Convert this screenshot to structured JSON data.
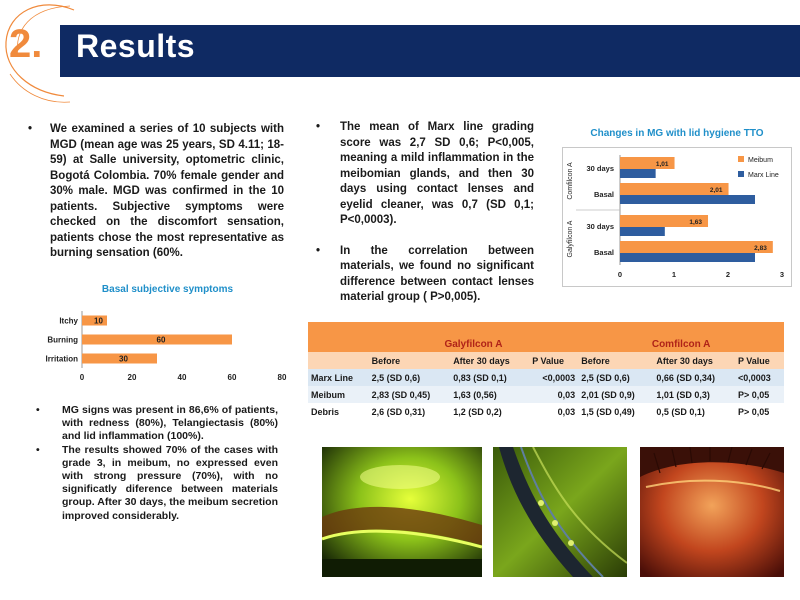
{
  "header": {
    "number": "2.",
    "title": "Results",
    "colors": {
      "bar": "#0f2a63",
      "accent": "#f08a3c"
    }
  },
  "left_bullets": [
    "We examined a series of 10 subjects with MGD (mean age was 25  years, SD 4.11; 18-59) at Salle university, optometric clinic, Bogotá Colombia. 70% female gender and 30% male. MGD was confirmed in the 10 patients.  Subjective symptoms were checked on the discomfort sensation, patients chose the most representative as burning sensation (60%."
  ],
  "middle_bullets": [
    "The mean of Marx line grading score was 2,7 SD 0,6; P<0,005, meaning a mild inflammation in the meibomian glands, and then 30 days using contact lenses and eyelid cleaner, was 0,7 (SD 0,1; P<0,0003).",
    "In the correlation between materials, we found no significant difference between contact lenses material group ( P>0,005)."
  ],
  "bottom_bullets": [
    "MG signs was present in 86,6% of patients, with redness (80%), Telangiectasis (80%) and lid inflammation  (100%).",
    "The results showed 70% of the cases with grade 3, in meibum, no expressed even with strong pressure (70%), with no significatly diference between materials group. After 30 days, the meibum secretion improved considerably."
  ],
  "chart_data": [
    {
      "type": "bar",
      "orientation": "horizontal",
      "title": "Basal subjective symptoms",
      "categories": [
        "Itchy",
        "Burning",
        "Irritation"
      ],
      "values": [
        10,
        60,
        30
      ],
      "xlim": [
        0,
        80
      ],
      "xticks": [
        0,
        20,
        40,
        60,
        80
      ],
      "bar_color": "#f79646",
      "grid": false
    },
    {
      "type": "bar",
      "orientation": "horizontal",
      "title": "Changes in MG with lid hygiene TTO",
      "groups": [
        {
          "name": "Comfilcon A",
          "categories": [
            "30 days",
            "Basal"
          ]
        },
        {
          "name": "Galyfilcon A",
          "categories": [
            "30 days",
            "Basal"
          ]
        }
      ],
      "categories": [
        "Comfilcon A 30 days",
        "Comfilcon A Basal",
        "Galyfilcon A 30 days",
        "Galyfilcon A Basal"
      ],
      "series": [
        {
          "name": "Meibum",
          "values": [
            1.01,
            2.01,
            1.63,
            2.83
          ],
          "labels": [
            "1,01",
            "2,01",
            "1,63",
            "2,83"
          ],
          "color": "#f79646"
        },
        {
          "name": "Marx Line",
          "values": [
            0.66,
            2.5,
            0.83,
            2.5
          ],
          "color": "#2e5d9f"
        }
      ],
      "xlim": [
        0,
        3
      ],
      "xticks": [
        0,
        1,
        2,
        3
      ],
      "legend": "top-right",
      "grid": false
    }
  ],
  "table": {
    "group_headers": [
      "Galyfilcon A",
      "Comfilcon A"
    ],
    "sub_headers": [
      "Before",
      "After 30 days",
      "P Value",
      "Before",
      "After 30 days",
      "P Value"
    ],
    "rows": [
      {
        "label": "Marx Line",
        "cells": [
          "2,5 (SD 0,6)",
          "0,83 (SD 0,1)",
          "<0,0003",
          "2,5 (SD 0,6)",
          "0,66 (SD 0,34)",
          "<0,0003"
        ]
      },
      {
        "label": "Meibum",
        "cells": [
          "2,83 (SD 0,45)",
          "1,63 (0,56)",
          "0,03",
          "2,01 (SD 0,9)",
          "1,01 (SD 0,3)",
          "P> 0,05"
        ]
      },
      {
        "label": "Debris",
        "cells": [
          "2,6 (SD 0,31)",
          "1,2 (SD 0,2)",
          "0,03",
          "1,5 (SD 0,49)",
          "0,5 (SD 0,1)",
          "P> 0,05"
        ]
      }
    ]
  }
}
